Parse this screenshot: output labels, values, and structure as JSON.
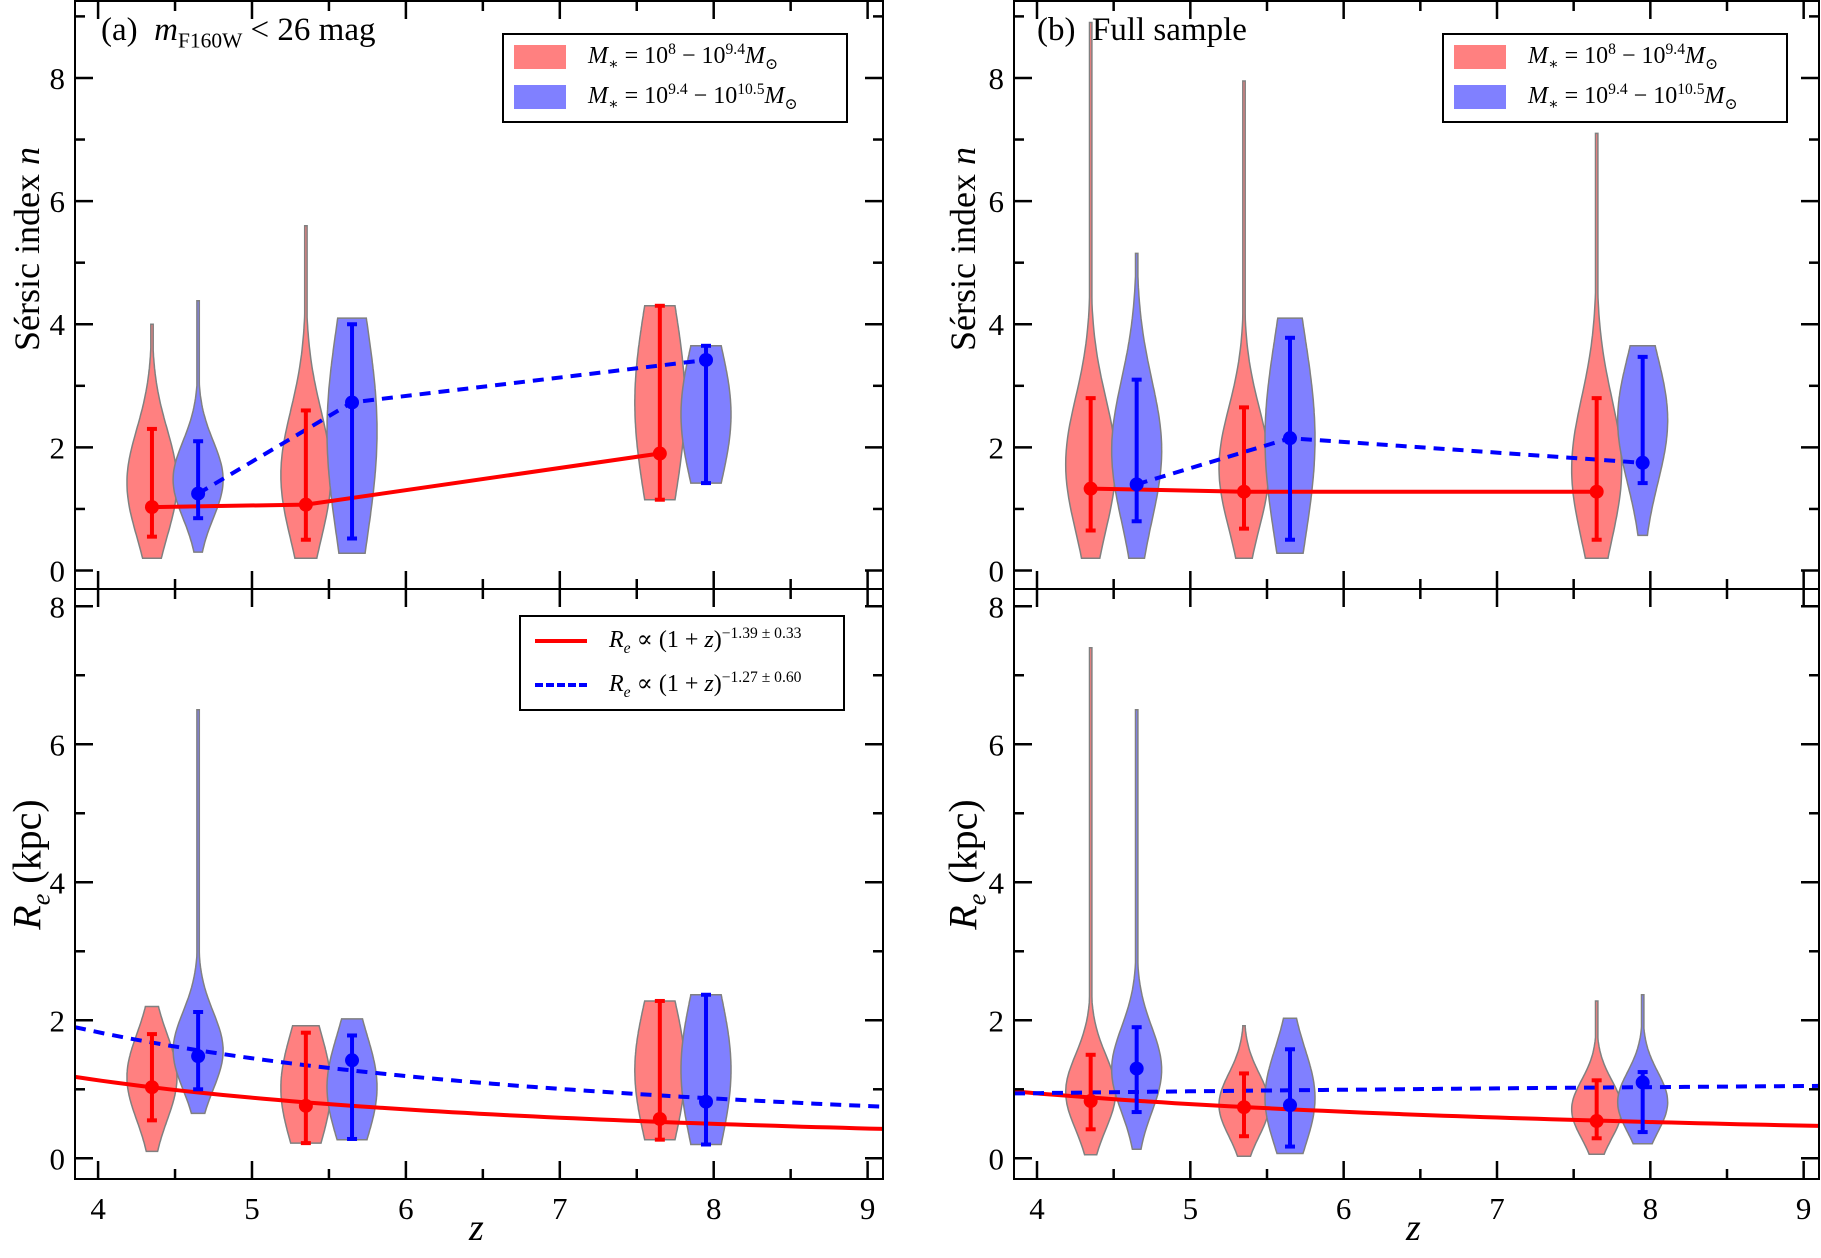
{
  "colors": {
    "red_fill": "#ff8080",
    "blue_fill": "#8080ff",
    "red_line": "#ff0000",
    "blue_line": "#0000ff",
    "violin_edge": "#808080"
  },
  "legends": {
    "mass_low": [
      {
        "t": "M",
        "s": "i"
      },
      {
        "t": "∗",
        "s": "sub"
      },
      {
        "t": " = 10",
        "s": "n"
      },
      {
        "t": "8",
        "s": "sup"
      },
      {
        "t": " − 10",
        "s": "n"
      },
      {
        "t": "9.4",
        "s": "sup"
      },
      {
        "t": "M",
        "s": "i"
      },
      {
        "t": "⊙",
        "s": "sub"
      }
    ],
    "mass_high": [
      {
        "t": "M",
        "s": "i"
      },
      {
        "t": "∗",
        "s": "sub"
      },
      {
        "t": " = 10",
        "s": "n"
      },
      {
        "t": "9.4",
        "s": "sup"
      },
      {
        "t": " − 10",
        "s": "n"
      },
      {
        "t": "10.5",
        "s": "sup"
      },
      {
        "t": "M",
        "s": "i"
      },
      {
        "t": "⊙",
        "s": "sub"
      }
    ],
    "fit_red": [
      {
        "t": "R",
        "s": "i"
      },
      {
        "t": "e",
        "s": "subi"
      },
      {
        "t": " ∝ (1 + ",
        "s": "n"
      },
      {
        "t": "z",
        "s": "i"
      },
      {
        "t": ")",
        "s": "n"
      },
      {
        "t": "−1.39 ± 0.33",
        "s": "sup"
      }
    ],
    "fit_blue": [
      {
        "t": "R",
        "s": "i"
      },
      {
        "t": "e",
        "s": "subi"
      },
      {
        "t": " ∝ (1 + ",
        "s": "n"
      },
      {
        "t": "z",
        "s": "i"
      },
      {
        "t": ")",
        "s": "n"
      },
      {
        "t": "−1.27 ± 0.60",
        "s": "sup"
      }
    ]
  },
  "annotations": {
    "a_label": "(a)",
    "a_m": "m",
    "a_sub": "F160W",
    "a_rest": " < 26 mag",
    "b_label": "(b)",
    "b_text": "Full sample"
  },
  "axis_labels": {
    "sersic_main": "Sérsic index ",
    "sersic_n": "n",
    "re_R": "R",
    "re_e": "e",
    "re_unit": " (kpc)",
    "x": "z"
  },
  "chart_data": [
    {
      "id": "a-top",
      "type": "violin",
      "xlim": [
        3.85,
        9.1
      ],
      "ylim": [
        -0.3,
        9.25
      ],
      "xticks": [
        4,
        5,
        6,
        7,
        8,
        9
      ],
      "yticks": [
        0,
        2,
        4,
        6,
        8
      ],
      "show_xticklabels": false,
      "grid": false,
      "ylabel": "Sérsic index n",
      "legend": "top-right",
      "series": [
        {
          "color": "red",
          "line": "solid",
          "violins": [
            {
              "z": 4.35,
              "min": 0.2,
              "max": 4.0,
              "median": 1.03,
              "err": [
                0.55,
                2.3
              ]
            },
            {
              "z": 5.35,
              "min": 0.2,
              "max": 5.6,
              "median": 1.07,
              "err": [
                0.5,
                2.6
              ]
            },
            {
              "z": 7.65,
              "min": 1.15,
              "max": 4.3,
              "median": 1.9,
              "err": [
                1.15,
                4.3
              ]
            }
          ]
        },
        {
          "color": "blue",
          "line": "dashed",
          "violins": [
            {
              "z": 4.65,
              "min": 0.3,
              "max": 4.38,
              "median": 1.25,
              "err": [
                0.85,
                2.1
              ]
            },
            {
              "z": 5.65,
              "min": 0.28,
              "max": 4.1,
              "median": 2.73,
              "err": [
                0.52,
                4.0
              ]
            },
            {
              "z": 7.95,
              "min": 1.42,
              "max": 3.65,
              "median": 3.42,
              "err": [
                1.42,
                3.65
              ]
            }
          ]
        }
      ],
      "fits": []
    },
    {
      "id": "a-bottom",
      "type": "violin",
      "xlim": [
        3.85,
        9.1
      ],
      "ylim": [
        -0.3,
        8.25
      ],
      "xticks": [
        4,
        5,
        6,
        7,
        8,
        9
      ],
      "yticks": [
        0,
        2,
        4,
        6,
        8
      ],
      "show_xticklabels": true,
      "grid": false,
      "xlabel": "z",
      "ylabel": "Re (kpc)",
      "legend": "top-right",
      "series": [
        {
          "color": "red",
          "line": "none",
          "violins": [
            {
              "z": 4.35,
              "min": 0.1,
              "max": 2.2,
              "median": 1.03,
              "err": [
                0.55,
                1.8
              ]
            },
            {
              "z": 5.35,
              "min": 0.22,
              "max": 1.92,
              "median": 0.76,
              "err": [
                0.22,
                1.82
              ]
            },
            {
              "z": 7.65,
              "min": 0.27,
              "max": 2.28,
              "median": 0.57,
              "err": [
                0.27,
                2.28
              ]
            }
          ]
        },
        {
          "color": "blue",
          "line": "none",
          "violins": [
            {
              "z": 4.65,
              "min": 0.65,
              "max": 6.5,
              "median": 1.48,
              "err": [
                1.0,
                2.12
              ]
            },
            {
              "z": 5.65,
              "min": 0.27,
              "max": 2.02,
              "median": 1.42,
              "err": [
                0.28,
                1.78
              ]
            },
            {
              "z": 7.95,
              "min": 0.2,
              "max": 2.37,
              "median": 0.82,
              "err": [
                0.2,
                2.37
              ]
            }
          ]
        }
      ],
      "fits": [
        {
          "color": "red",
          "line": "solid",
          "index": -1.39,
          "value_at_xmin": 1.18
        },
        {
          "color": "blue",
          "line": "dashed",
          "index": -1.27,
          "value_at_xmin": 1.9
        }
      ]
    },
    {
      "id": "b-top",
      "type": "violin",
      "xlim": [
        3.85,
        9.1
      ],
      "ylim": [
        -0.3,
        9.25
      ],
      "xticks": [
        4,
        5,
        6,
        7,
        8,
        9
      ],
      "yticks": [
        0,
        2,
        4,
        6,
        8
      ],
      "show_xticklabels": false,
      "grid": false,
      "ylabel": "Sérsic index n",
      "legend": "top-right",
      "series": [
        {
          "color": "red",
          "line": "solid",
          "violins": [
            {
              "z": 4.35,
              "min": 0.2,
              "max": 8.9,
              "median": 1.33,
              "err": [
                0.65,
                2.8
              ]
            },
            {
              "z": 5.35,
              "min": 0.2,
              "max": 7.95,
              "median": 1.28,
              "err": [
                0.68,
                2.65
              ]
            },
            {
              "z": 7.65,
              "min": 0.2,
              "max": 7.1,
              "median": 1.28,
              "err": [
                0.5,
                2.8
              ]
            }
          ]
        },
        {
          "color": "blue",
          "line": "dashed",
          "violins": [
            {
              "z": 4.65,
              "min": 0.2,
              "max": 5.15,
              "median": 1.4,
              "err": [
                0.8,
                3.1
              ]
            },
            {
              "z": 5.65,
              "min": 0.28,
              "max": 4.1,
              "median": 2.15,
              "err": [
                0.5,
                3.78
              ]
            },
            {
              "z": 7.95,
              "min": 0.57,
              "max": 3.65,
              "median": 1.75,
              "err": [
                1.42,
                3.47
              ]
            }
          ]
        }
      ],
      "fits": []
    },
    {
      "id": "b-bottom",
      "type": "violin",
      "xlim": [
        3.85,
        9.1
      ],
      "ylim": [
        -0.3,
        8.25
      ],
      "xticks": [
        4,
        5,
        6,
        7,
        8,
        9
      ],
      "yticks": [
        0,
        2,
        4,
        6,
        8
      ],
      "show_xticklabels": true,
      "grid": false,
      "xlabel": "z",
      "ylabel": "Re (kpc)",
      "series": [
        {
          "color": "red",
          "line": "none",
          "violins": [
            {
              "z": 4.35,
              "min": 0.05,
              "max": 7.4,
              "median": 0.83,
              "err": [
                0.42,
                1.5
              ]
            },
            {
              "z": 5.35,
              "min": 0.03,
              "max": 1.92,
              "median": 0.74,
              "err": [
                0.32,
                1.23
              ]
            },
            {
              "z": 7.65,
              "min": 0.06,
              "max": 2.28,
              "median": 0.54,
              "err": [
                0.29,
                1.13
              ]
            }
          ]
        },
        {
          "color": "blue",
          "line": "none",
          "violins": [
            {
              "z": 4.65,
              "min": 0.13,
              "max": 6.5,
              "median": 1.3,
              "err": [
                0.67,
                1.9
              ]
            },
            {
              "z": 5.65,
              "min": 0.07,
              "max": 2.03,
              "median": 0.77,
              "err": [
                0.17,
                1.58
              ]
            },
            {
              "z": 7.95,
              "min": 0.21,
              "max": 2.37,
              "median": 1.1,
              "err": [
                0.38,
                1.25
              ]
            }
          ]
        }
      ],
      "fits": [
        {
          "color": "red",
          "line": "solid",
          "index": -0.99,
          "value_at_xmin": 0.97
        },
        {
          "color": "blue",
          "line": "dashed",
          "index": 0.15,
          "value_at_xmin": 0.94
        }
      ]
    }
  ]
}
